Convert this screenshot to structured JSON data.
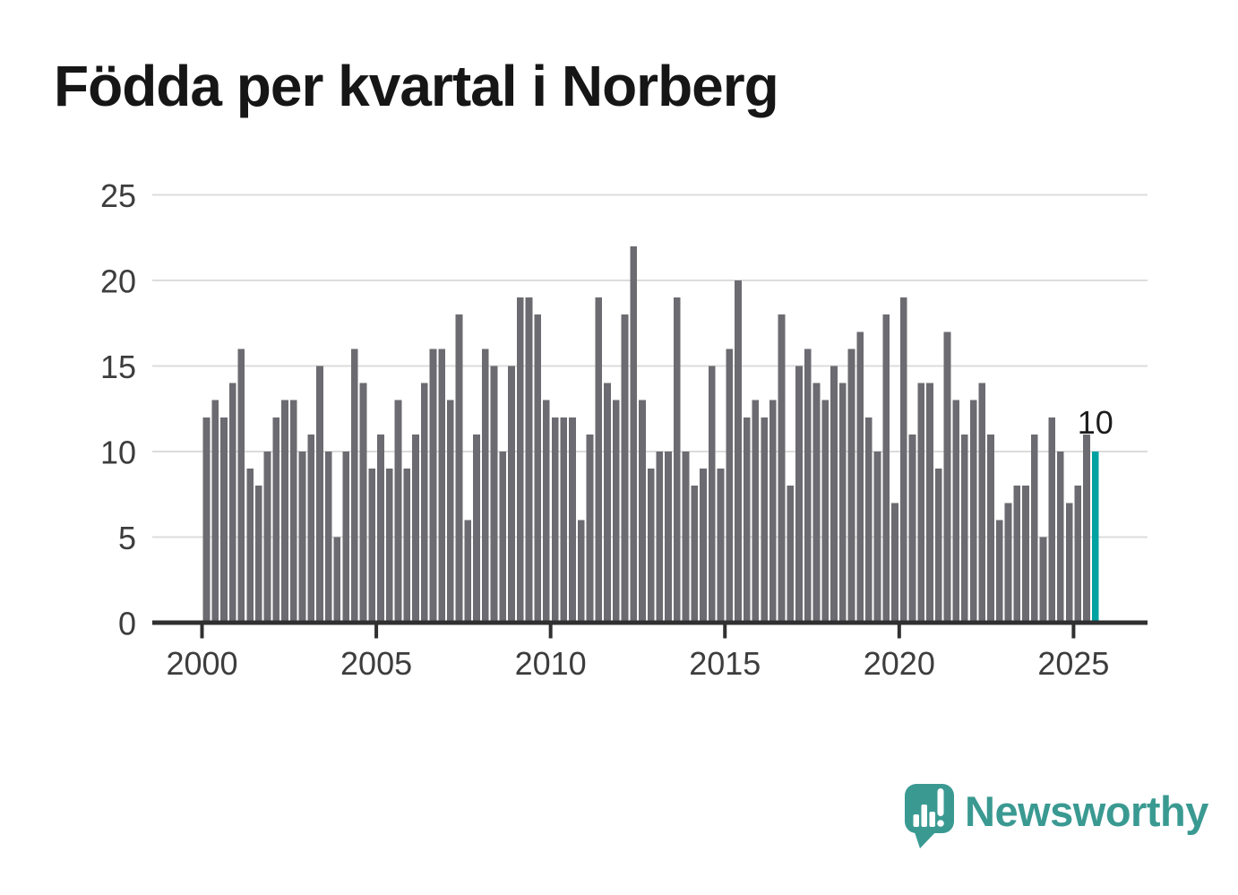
{
  "title": {
    "text": "Födda per kvartal i Norberg"
  },
  "chart_data": {
    "type": "bar",
    "title": "Födda per kvartal i Norberg",
    "x_axis": {
      "unit": "quarter",
      "start": "2000 Q1",
      "end": "2025 Q3",
      "tick_labels": [
        "2000",
        "2005",
        "2010",
        "2015",
        "2020",
        "2025"
      ]
    },
    "y_axis": {
      "tick_labels": [
        "0",
        "5",
        "10",
        "15",
        "20",
        "25"
      ],
      "range": [
        0,
        25
      ],
      "gridlines": true
    },
    "series": [
      {
        "name": "Födda per kvartal",
        "values": [
          12,
          13,
          12,
          14,
          16,
          9,
          8,
          10,
          12,
          13,
          13,
          10,
          11,
          15,
          10,
          5,
          10,
          16,
          14,
          9,
          11,
          9,
          13,
          9,
          11,
          14,
          16,
          16,
          13,
          18,
          6,
          11,
          16,
          15,
          10,
          15,
          19,
          19,
          18,
          13,
          12,
          12,
          12,
          6,
          11,
          19,
          14,
          13,
          18,
          22,
          13,
          9,
          10,
          10,
          19,
          10,
          8,
          9,
          15,
          9,
          16,
          20,
          12,
          13,
          12,
          13,
          18,
          8,
          15,
          16,
          14,
          13,
          15,
          14,
          16,
          17,
          12,
          10,
          18,
          7,
          19,
          11,
          14,
          14,
          9,
          17,
          13,
          11,
          13,
          14,
          11,
          6,
          7,
          8,
          8,
          11,
          5,
          12,
          10,
          7,
          8,
          11,
          10
        ]
      }
    ],
    "highlight": {
      "index": 102,
      "value": 10,
      "data_label": "10"
    },
    "colors": {
      "bar": "#6b6b71",
      "highlight": "#00a2a2",
      "gridline": "#dcdcdc",
      "axis": "#303030",
      "tick_text": "#3d3d3d",
      "annotation_text": "#1c1c1c"
    },
    "legend": "none"
  },
  "logo": {
    "text": "Newsworthy",
    "color": "#3a9a92",
    "icon": "speech-bubble-bar-chart-icon"
  }
}
